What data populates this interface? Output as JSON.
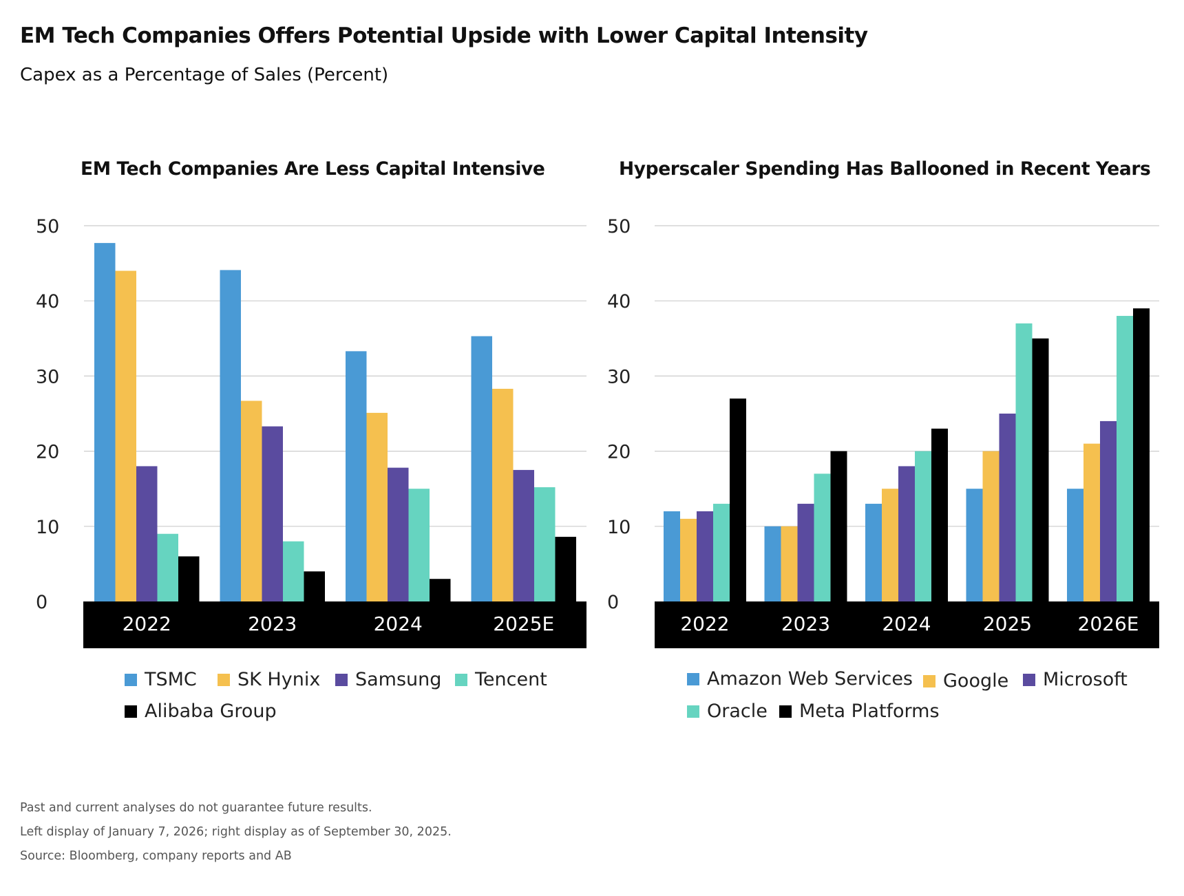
{
  "title": "EM Tech Companies Offers Potential Upside with Lower Capital Intensity",
  "subtitle": "Capex as a Percentage of Sales (Percent)",
  "colors": {
    "blue": "#4a9ad5",
    "yellow": "#f5c04f",
    "purple": "#5a4b9f",
    "teal": "#66d4c0",
    "black": "#000000",
    "grid": "#cccccc",
    "axis_band": "#000000"
  },
  "chart_data": [
    {
      "type": "bar",
      "title": "EM Tech Companies Are Less Capital Intensive",
      "categories": [
        "2022",
        "2023",
        "2024",
        "2025E"
      ],
      "ylim": [
        0,
        50
      ],
      "yticks": [
        "0",
        "10",
        "20",
        "30",
        "40",
        "50"
      ],
      "grid": true,
      "legend_position": "bottom",
      "series": [
        {
          "name": "TSMC",
          "color": "#4a9ad5",
          "values": [
            47.7,
            44.1,
            33.3,
            35.3
          ]
        },
        {
          "name": "SK Hynix",
          "color": "#f5c04f",
          "values": [
            44.0,
            26.7,
            25.1,
            28.3
          ]
        },
        {
          "name": "Samsung",
          "color": "#5a4b9f",
          "values": [
            18.0,
            23.3,
            17.8,
            17.5
          ]
        },
        {
          "name": "Tencent",
          "color": "#66d4c0",
          "values": [
            9.0,
            8.0,
            15.0,
            15.2
          ]
        },
        {
          "name": "Alibaba Group",
          "color": "#000000",
          "values": [
            6.0,
            4.0,
            3.0,
            8.6
          ]
        }
      ]
    },
    {
      "type": "bar",
      "title": "Hyperscaler Spending Has Ballooned in Recent Years",
      "categories": [
        "2022",
        "2023",
        "2024",
        "2025",
        "2026E"
      ],
      "ylim": [
        0,
        50
      ],
      "yticks": [
        "0",
        "10",
        "20",
        "30",
        "40",
        "50"
      ],
      "grid": true,
      "legend_position": "bottom",
      "series": [
        {
          "name": "Amazon Web Services",
          "color": "#4a9ad5",
          "values": [
            12,
            10,
            13,
            15,
            15
          ]
        },
        {
          "name": "Google",
          "color": "#f5c04f",
          "values": [
            11,
            10,
            15,
            20,
            21
          ]
        },
        {
          "name": "Microsoft",
          "color": "#5a4b9f",
          "values": [
            12,
            13,
            18,
            25,
            24
          ]
        },
        {
          "name": "Oracle",
          "color": "#66d4c0",
          "values": [
            13,
            17,
            20,
            37,
            38
          ]
        },
        {
          "name": "Meta Platforms",
          "color": "#000000",
          "values": [
            27,
            20,
            23,
            35,
            39
          ]
        }
      ]
    }
  ],
  "footnotes": [
    "Past and current analyses do not guarantee future results.",
    "Left display of January 7, 2026; right display as of September 30, 2025.",
    "Source: Bloomberg, company reports and AB"
  ]
}
